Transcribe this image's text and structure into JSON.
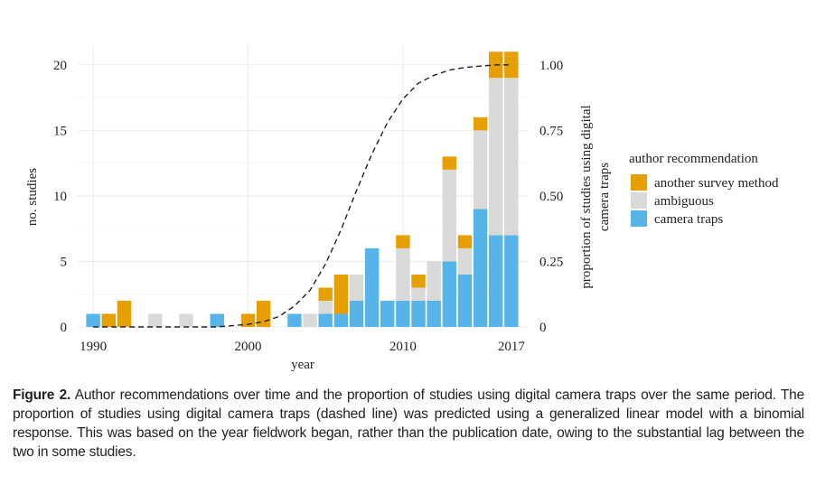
{
  "chart_data": {
    "type": "bar",
    "stacked": true,
    "xlabel": "year",
    "ylabel": "no. studies",
    "y2label": "proportion of studies using digital camera traps",
    "x_ticks": [
      1990,
      2000,
      2010,
      2017
    ],
    "y_ticks": [
      0,
      5,
      10,
      15,
      20
    ],
    "y2_ticks": [
      "0",
      "0.25",
      "0.50",
      "0.75",
      "1.00"
    ],
    "xlim": [
      1989,
      2018
    ],
    "ylim": [
      0,
      21.5
    ],
    "grid": true,
    "legend_title": "author recommendation",
    "legend_position": "right",
    "years": [
      1990,
      1991,
      1992,
      1993,
      1994,
      1995,
      1996,
      1997,
      1998,
      1999,
      2000,
      2001,
      2002,
      2003,
      2004,
      2005,
      2006,
      2007,
      2008,
      2009,
      2010,
      2011,
      2012,
      2013,
      2014,
      2015,
      2016,
      2017
    ],
    "series": [
      {
        "name": "camera traps",
        "color": "#56B4E9",
        "values": [
          1,
          0,
          0,
          0,
          0,
          0,
          0,
          0,
          1,
          0,
          0,
          0,
          0,
          1,
          0,
          1,
          1,
          2,
          6,
          2,
          2,
          2,
          2,
          5,
          4,
          9,
          7,
          7
        ]
      },
      {
        "name": "ambiguous",
        "color": "#D9D9D9",
        "values": [
          0,
          0,
          0,
          0,
          1,
          0,
          1,
          0,
          0,
          0,
          0,
          0,
          0,
          0,
          1,
          1,
          0,
          2,
          0,
          0,
          4,
          1,
          3,
          7,
          2,
          6,
          12,
          12
        ]
      },
      {
        "name": "another survey method",
        "color": "#E69F00",
        "values": [
          0,
          1,
          2,
          0,
          0,
          0,
          0,
          0,
          0,
          0,
          1,
          2,
          0,
          0,
          0,
          1,
          3,
          0,
          0,
          0,
          1,
          1,
          0,
          1,
          1,
          1,
          2,
          2
        ]
      }
    ],
    "trend_line": {
      "style": "dashed",
      "x": [
        1990,
        1992,
        1994,
        1996,
        1998,
        2000,
        2001,
        2002,
        2003,
        2004,
        2005,
        2006,
        2007,
        2008,
        2009,
        2010,
        2011,
        2012,
        2013,
        2014,
        2015,
        2016,
        2017
      ],
      "y": [
        0,
        0,
        0,
        0,
        0,
        0.01,
        0.02,
        0.04,
        0.08,
        0.14,
        0.24,
        0.37,
        0.52,
        0.66,
        0.78,
        0.87,
        0.93,
        0.96,
        0.98,
        0.99,
        0.995,
        1.0,
        1.0
      ]
    }
  },
  "caption": {
    "label": "Figure 2.",
    "text": "Author recommendations over time and the proportion of studies using digital camera traps over the same period. The proportion of studies using digital camera traps (dashed line) was predicted using a generalized linear model with a binomial response. This was based on the year fieldwork began, rather than the publication date, owing to the substantial lag between the two in some studies."
  }
}
